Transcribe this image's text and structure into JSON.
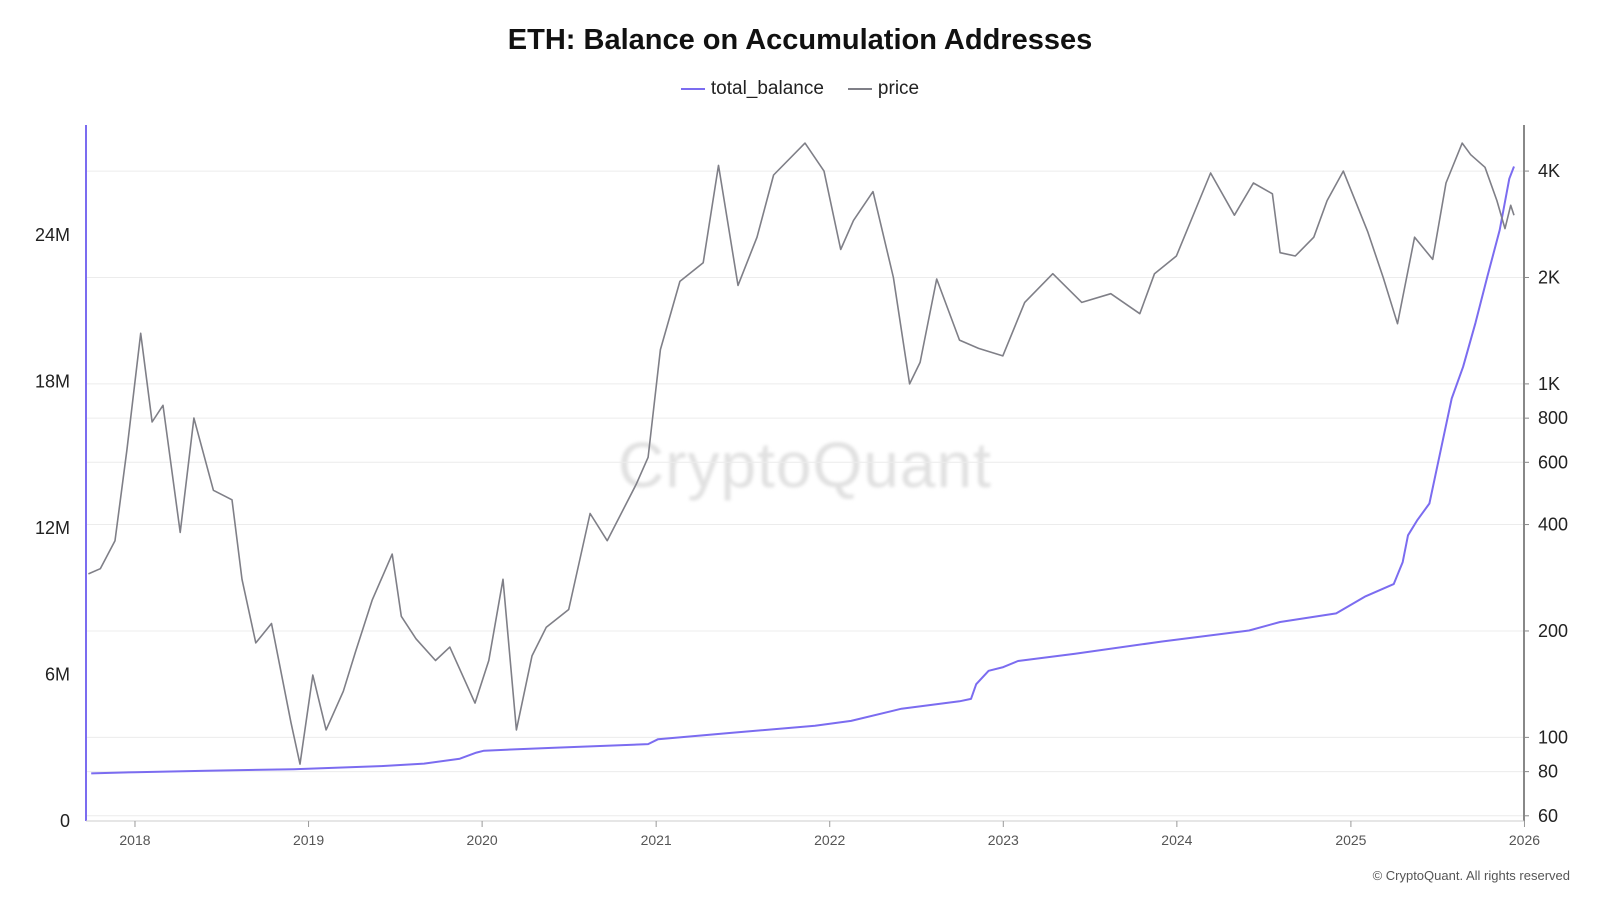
{
  "chart_data": {
    "type": "line",
    "title": "ETH: Balance on Accumulation Addresses",
    "legend": [
      "total_balance",
      "price"
    ],
    "legend_position": "top-center",
    "grid": true,
    "left_axis": {
      "range": [
        0,
        28500000
      ],
      "ticks": [
        0,
        6000000,
        12000000,
        18000000,
        24000000
      ],
      "tick_labels": [
        "0",
        "6M",
        "12M",
        "18M",
        "24M"
      ]
    },
    "right_axis": {
      "scale": "log",
      "range": [
        58,
        5400
      ],
      "ticks": [
        60,
        80,
        100,
        200,
        400,
        600,
        800,
        1000,
        2000,
        4000
      ],
      "tick_labels": [
        "60",
        "80",
        "100",
        "200",
        "400",
        "600",
        "800",
        "1K",
        "2K",
        "4K"
      ]
    },
    "x_axis": {
      "range": [
        "2017-09-20",
        "2025-12-31"
      ],
      "tick_labels": [
        "2018",
        "2019",
        "2020",
        "2021",
        "2022",
        "2023",
        "2024",
        "2025",
        "2026"
      ]
    },
    "series": [
      {
        "name": "total_balance",
        "axis": "left",
        "color": "#7b6cf0",
        "points": [
          [
            "2017-10-01",
            1950000
          ],
          [
            "2018-01-01",
            2000000
          ],
          [
            "2018-06-01",
            2060000
          ],
          [
            "2018-12-01",
            2120000
          ],
          [
            "2019-06-01",
            2250000
          ],
          [
            "2019-09-01",
            2350000
          ],
          [
            "2019-11-15",
            2550000
          ],
          [
            "2019-12-20",
            2800000
          ],
          [
            "2020-01-05",
            2880000
          ],
          [
            "2020-06-01",
            3000000
          ],
          [
            "2020-12-15",
            3150000
          ],
          [
            "2021-01-05",
            3350000
          ],
          [
            "2021-06-01",
            3600000
          ],
          [
            "2021-12-01",
            3900000
          ],
          [
            "2022-02-15",
            4100000
          ],
          [
            "2022-06-01",
            4600000
          ],
          [
            "2022-10-01",
            4900000
          ],
          [
            "2022-10-25",
            5000000
          ],
          [
            "2022-11-05",
            5600000
          ],
          [
            "2022-12-01",
            6150000
          ],
          [
            "2023-01-01",
            6300000
          ],
          [
            "2023-02-01",
            6550000
          ],
          [
            "2023-06-01",
            6850000
          ],
          [
            "2023-12-01",
            7350000
          ],
          [
            "2024-06-01",
            7800000
          ],
          [
            "2024-08-05",
            8150000
          ],
          [
            "2024-12-01",
            8500000
          ],
          [
            "2025-02-01",
            9200000
          ],
          [
            "2025-04-01",
            9700000
          ],
          [
            "2025-04-20",
            10600000
          ],
          [
            "2025-05-01",
            11700000
          ],
          [
            "2025-05-20",
            12300000
          ],
          [
            "2025-06-15",
            13000000
          ],
          [
            "2025-07-10",
            15300000
          ],
          [
            "2025-08-01",
            17300000
          ],
          [
            "2025-08-25",
            18600000
          ],
          [
            "2025-09-20",
            20400000
          ],
          [
            "2025-10-15",
            22300000
          ],
          [
            "2025-11-10",
            24200000
          ],
          [
            "2025-11-30",
            26300000
          ],
          [
            "2025-12-10",
            26800000
          ]
        ]
      },
      {
        "name": "price",
        "axis": "right",
        "color": "#7f7f87",
        "points": [
          [
            "2017-09-25",
            290
          ],
          [
            "2017-10-20",
            300
          ],
          [
            "2017-11-20",
            360
          ],
          [
            "2017-12-15",
            650
          ],
          [
            "2018-01-13",
            1390
          ],
          [
            "2018-02-06",
            780
          ],
          [
            "2018-03-01",
            870
          ],
          [
            "2018-04-06",
            380
          ],
          [
            "2018-05-05",
            800
          ],
          [
            "2018-06-15",
            500
          ],
          [
            "2018-07-24",
            470
          ],
          [
            "2018-08-14",
            280
          ],
          [
            "2018-09-12",
            185
          ],
          [
            "2018-10-15",
            210
          ],
          [
            "2018-11-25",
            110
          ],
          [
            "2018-12-14",
            84
          ],
          [
            "2019-01-10",
            150
          ],
          [
            "2019-02-07",
            105
          ],
          [
            "2019-03-15",
            135
          ],
          [
            "2019-04-10",
            175
          ],
          [
            "2019-05-15",
            245
          ],
          [
            "2019-06-26",
            330
          ],
          [
            "2019-07-15",
            220
          ],
          [
            "2019-08-15",
            190
          ],
          [
            "2019-09-25",
            165
          ],
          [
            "2019-10-25",
            180
          ],
          [
            "2019-12-17",
            125
          ],
          [
            "2020-01-15",
            165
          ],
          [
            "2020-02-14",
            280
          ],
          [
            "2020-03-13",
            105
          ],
          [
            "2020-04-15",
            170
          ],
          [
            "2020-05-15",
            205
          ],
          [
            "2020-07-01",
            230
          ],
          [
            "2020-08-15",
            430
          ],
          [
            "2020-09-20",
            360
          ],
          [
            "2020-11-20",
            520
          ],
          [
            "2020-12-15",
            620
          ],
          [
            "2021-01-10",
            1250
          ],
          [
            "2021-02-20",
            1950
          ],
          [
            "2021-04-10",
            2200
          ],
          [
            "2021-05-12",
            4150
          ],
          [
            "2021-06-22",
            1900
          ],
          [
            "2021-08-01",
            2600
          ],
          [
            "2021-09-05",
            3900
          ],
          [
            "2021-11-10",
            4800
          ],
          [
            "2021-12-20",
            4000
          ],
          [
            "2022-01-24",
            2400
          ],
          [
            "2022-02-20",
            2900
          ],
          [
            "2022-04-02",
            3500
          ],
          [
            "2022-05-15",
            2000
          ],
          [
            "2022-06-18",
            1000
          ],
          [
            "2022-07-10",
            1150
          ],
          [
            "2022-08-14",
            1980
          ],
          [
            "2022-10-01",
            1330
          ],
          [
            "2022-11-10",
            1260
          ],
          [
            "2022-12-31",
            1200
          ],
          [
            "2023-02-15",
            1700
          ],
          [
            "2023-04-15",
            2050
          ],
          [
            "2023-06-15",
            1700
          ],
          [
            "2023-08-15",
            1800
          ],
          [
            "2023-10-15",
            1580
          ],
          [
            "2023-11-15",
            2050
          ],
          [
            "2023-12-31",
            2300
          ],
          [
            "2024-03-12",
            3950
          ],
          [
            "2024-05-01",
            3000
          ],
          [
            "2024-06-10",
            3700
          ],
          [
            "2024-07-20",
            3450
          ],
          [
            "2024-08-05",
            2350
          ],
          [
            "2024-09-06",
            2300
          ],
          [
            "2024-10-15",
            2600
          ],
          [
            "2024-11-12",
            3300
          ],
          [
            "2024-12-16",
            4000
          ],
          [
            "2025-01-10",
            3300
          ],
          [
            "2025-02-05",
            2700
          ],
          [
            "2025-03-10",
            2000
          ],
          [
            "2025-04-09",
            1480
          ],
          [
            "2025-05-15",
            2600
          ],
          [
            "2025-06-22",
            2250
          ],
          [
            "2025-07-20",
            3700
          ],
          [
            "2025-08-23",
            4800
          ],
          [
            "2025-09-10",
            4450
          ],
          [
            "2025-10-10",
            4100
          ],
          [
            "2025-11-04",
            3300
          ],
          [
            "2025-11-21",
            2750
          ],
          [
            "2025-12-03",
            3200
          ],
          [
            "2025-12-10",
            3000
          ]
        ]
      }
    ]
  },
  "footer": {
    "watermark": "CryptoQuant",
    "copyright": "© CryptoQuant. All rights reserved"
  },
  "colors": {
    "balance_line": "#7b6cf0",
    "price_line": "#7f7f87",
    "left_axis_line": "#7b6cf0",
    "right_axis_line": "#888888",
    "grid": "#ececec"
  }
}
